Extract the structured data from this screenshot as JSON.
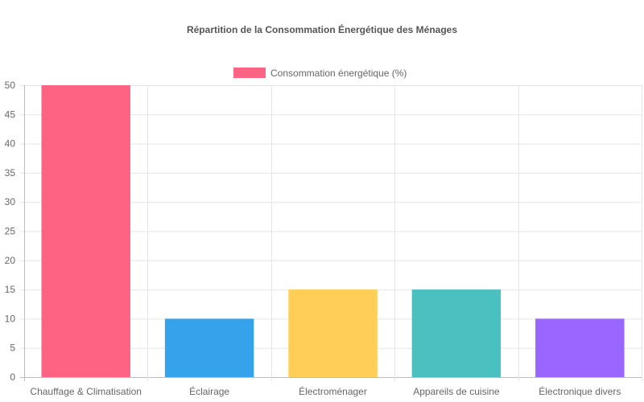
{
  "chart_data": {
    "type": "bar",
    "title": "Répartition de la Consommation Énergétique des Ménages",
    "categories": [
      "Chauffage & Climatisation",
      "Éclairage",
      "Électroménager",
      "Appareils de cuisine",
      "Électronique divers"
    ],
    "series": [
      {
        "name": "Consommation énergétique (%)",
        "values": [
          50,
          10,
          15,
          15,
          10
        ],
        "colors": [
          "#ff6384",
          "#36a2eb",
          "#ffce56",
          "#4bc0c0",
          "#9966ff"
        ]
      }
    ],
    "ylim": [
      0,
      50
    ],
    "yticks": [
      0,
      5,
      10,
      15,
      20,
      25,
      30,
      35,
      40,
      45,
      50
    ],
    "grid": true,
    "legend": "top-center",
    "legend_color": "#ff6384"
  }
}
